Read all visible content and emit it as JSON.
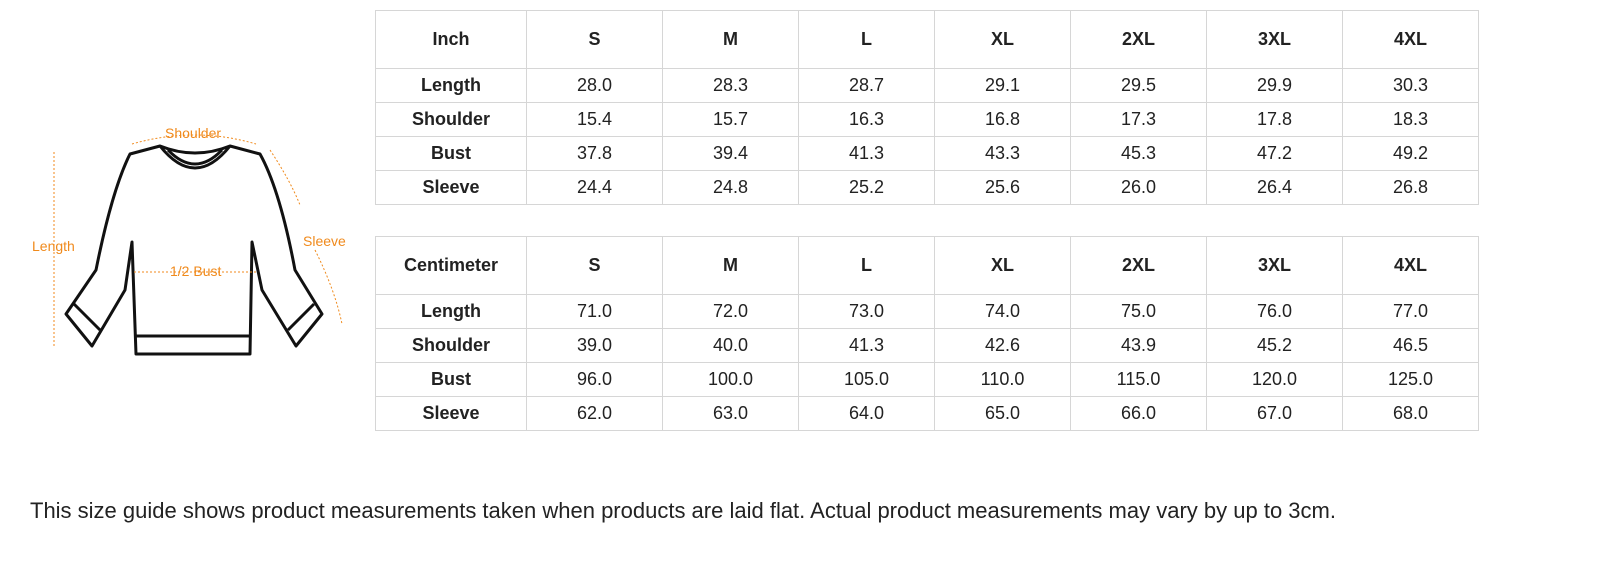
{
  "diagram": {
    "labels": {
      "shoulder": "Shoulder",
      "length": "Length",
      "sleeve": "Sleeve",
      "bust": "1/2 Bust"
    }
  },
  "tables": [
    {
      "header": [
        "Inch",
        "S",
        "M",
        "L",
        "XL",
        "2XL",
        "3XL",
        "4XL"
      ],
      "rows": [
        [
          "Length",
          "28.0",
          "28.3",
          "28.7",
          "29.1",
          "29.5",
          "29.9",
          "30.3"
        ],
        [
          "Shoulder",
          "15.4",
          "15.7",
          "16.3",
          "16.8",
          "17.3",
          "17.8",
          "18.3"
        ],
        [
          "Bust",
          "37.8",
          "39.4",
          "41.3",
          "43.3",
          "45.3",
          "47.2",
          "49.2"
        ],
        [
          "Sleeve",
          "24.4",
          "24.8",
          "25.2",
          "25.6",
          "26.0",
          "26.4",
          "26.8"
        ]
      ]
    },
    {
      "header": [
        "Centimeter",
        "S",
        "M",
        "L",
        "XL",
        "2XL",
        "3XL",
        "4XL"
      ],
      "rows": [
        [
          "Length",
          "71.0",
          "72.0",
          "73.0",
          "74.0",
          "75.0",
          "76.0",
          "77.0"
        ],
        [
          "Shoulder",
          "39.0",
          "40.0",
          "41.3",
          "42.6",
          "43.9",
          "45.2",
          "46.5"
        ],
        [
          "Bust",
          "96.0",
          "100.0",
          "105.0",
          "110.0",
          "115.0",
          "120.0",
          "125.0"
        ],
        [
          "Sleeve",
          "62.0",
          "63.0",
          "64.0",
          "65.0",
          "66.0",
          "67.0",
          "68.0"
        ]
      ]
    }
  ],
  "note": "This size guide shows product measurements taken when products are laid flat. Actual product measurements may vary by up to 3cm."
}
